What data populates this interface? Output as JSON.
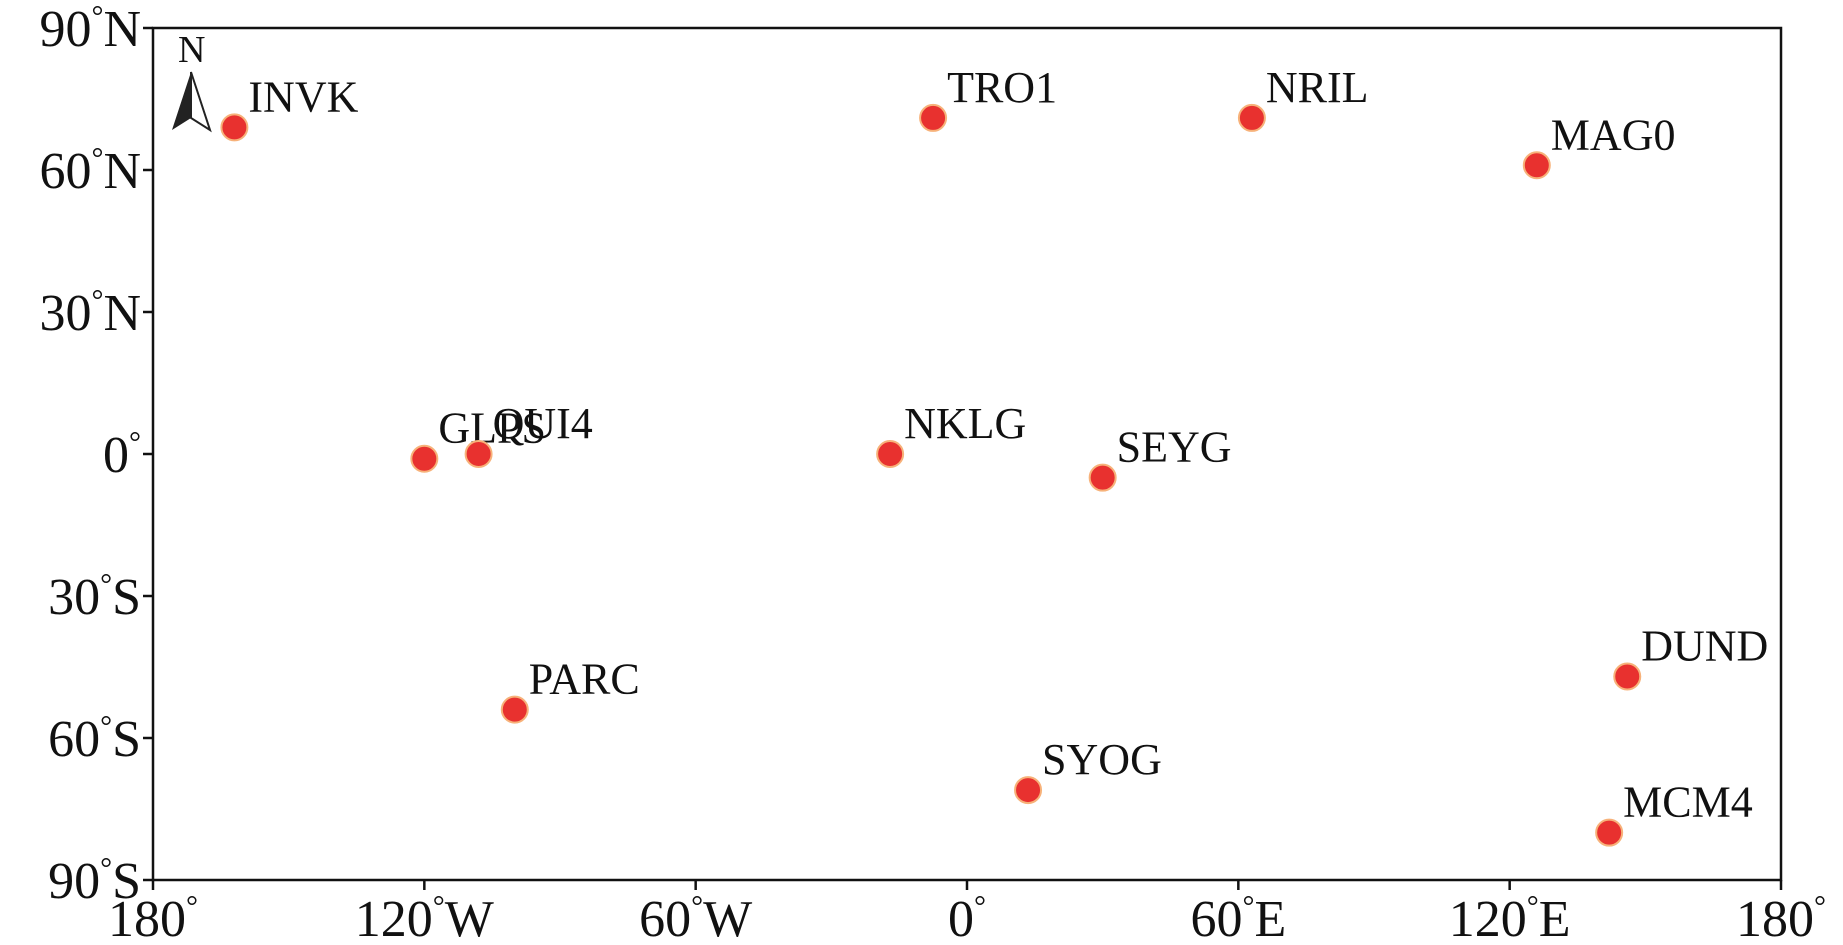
{
  "map": {
    "frame_color": "#111111",
    "marker_color": "#e8312f",
    "marker_edge_color": "#f7b27a",
    "north_arrow": {
      "label": "N",
      "icon": "north-arrow-icon"
    },
    "degree_symbol": "°",
    "x_axis": {
      "range": [
        -180,
        180
      ],
      "ticks": [
        {
          "value": -180,
          "num": "180",
          "hem": ""
        },
        {
          "value": -120,
          "num": "120",
          "hem": "W"
        },
        {
          "value": -60,
          "num": "60",
          "hem": "W"
        },
        {
          "value": 0,
          "num": "0",
          "hem": ""
        },
        {
          "value": 60,
          "num": "60",
          "hem": "E"
        },
        {
          "value": 120,
          "num": "120",
          "hem": "E"
        },
        {
          "value": 180,
          "num": "180",
          "hem": ""
        }
      ]
    },
    "y_axis": {
      "range": [
        -90,
        90
      ],
      "ticks": [
        {
          "value": 90,
          "num": "90",
          "hem": "N"
        },
        {
          "value": 60,
          "num": "60",
          "hem": "N"
        },
        {
          "value": 30,
          "num": "30",
          "hem": "N"
        },
        {
          "value": 0,
          "num": "0",
          "hem": ""
        },
        {
          "value": -30,
          "num": "30",
          "hem": "S"
        },
        {
          "value": -60,
          "num": "60",
          "hem": "S"
        },
        {
          "value": -90,
          "num": "90",
          "hem": "S"
        }
      ]
    },
    "stations": [
      {
        "name": "INVK",
        "lon": -162,
        "lat": 69
      },
      {
        "name": "TRO1",
        "lon": -7.5,
        "lat": 71
      },
      {
        "name": "NRIL",
        "lon": 63,
        "lat": 71
      },
      {
        "name": "MAG0",
        "lon": 126,
        "lat": 61
      },
      {
        "name": "GLPS",
        "lon": -120,
        "lat": -1
      },
      {
        "name": "QUI4",
        "lon": -108,
        "lat": 0
      },
      {
        "name": "NKLG",
        "lon": -17,
        "lat": 0
      },
      {
        "name": "SEYG",
        "lon": 30,
        "lat": -5
      },
      {
        "name": "PARC",
        "lon": -100,
        "lat": -54
      },
      {
        "name": "SYOG",
        "lon": 13.5,
        "lat": -71
      },
      {
        "name": "DUND",
        "lon": 146,
        "lat": -47
      },
      {
        "name": "MCM4",
        "lon": 142,
        "lat": -80
      }
    ]
  }
}
